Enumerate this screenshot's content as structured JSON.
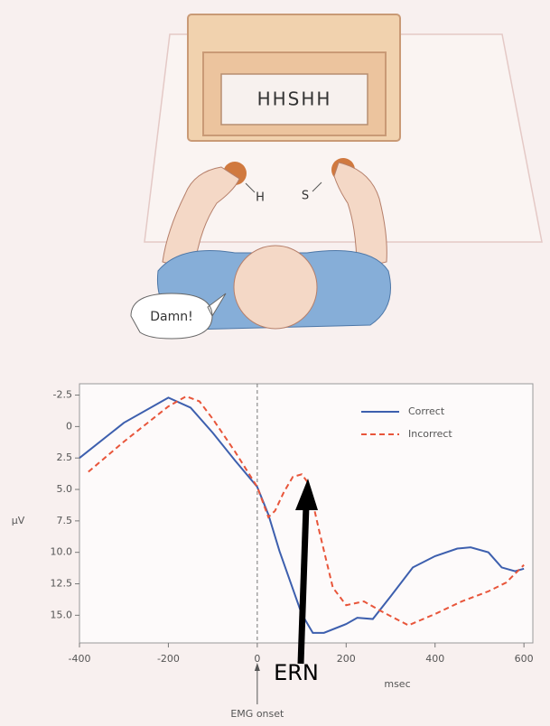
{
  "illustration": {
    "screen_text": "HHSHH",
    "left_key": "H",
    "right_key": "S",
    "speech": "Damn!"
  },
  "chart_data": {
    "type": "line",
    "x_label": "msec",
    "y_label": "μV",
    "xlim": [
      -400,
      620
    ],
    "xticks": [
      -400,
      -200,
      0,
      200,
      400,
      600
    ],
    "ylim": [
      -3.4,
      17.2
    ],
    "y_inverted": true,
    "yticks": [
      -2.5,
      0,
      2.5,
      {
        "value": 5,
        "label": "5.0"
      },
      7.5,
      {
        "value": 10,
        "label": "10.0"
      },
      12.5,
      {
        "value": 15,
        "label": "15.0"
      }
    ],
    "legend": "upper right",
    "event": {
      "label": "EMG onset",
      "x": 0
    },
    "annotation": "ERN",
    "series": [
      {
        "name": "Correct",
        "color": "#3d5fae",
        "dash": false,
        "x": [
          -400,
          -300,
          -200,
          -150,
          -100,
          -50,
          0,
          25,
          50,
          100,
          125,
          150,
          200,
          225,
          260,
          300,
          350,
          400,
          450,
          480,
          520,
          550,
          580,
          600
        ],
        "values": [
          2.5,
          -0.3,
          -2.3,
          -1.5,
          0.5,
          2.7,
          4.8,
          7,
          9.9,
          14.9,
          16.4,
          16.4,
          15.7,
          15.2,
          15.3,
          13.5,
          11.2,
          10.3,
          9.7,
          9.6,
          10,
          11.2,
          11.5,
          11.3
        ]
      },
      {
        "name": "Incorrect",
        "color": "#e8553a",
        "dash": true,
        "x": [
          -380,
          -300,
          -200,
          -160,
          -130,
          -100,
          -50,
          0,
          25,
          40,
          60,
          80,
          100,
          115,
          140,
          170,
          200,
          240,
          280,
          340,
          400,
          460,
          520,
          560,
          600
        ],
        "values": [
          3.6,
          1.2,
          -1.6,
          -2.4,
          -2,
          -0.6,
          2,
          4.8,
          7.2,
          6.7,
          5.2,
          4,
          3.8,
          4.5,
          8.4,
          12.8,
          14.2,
          13.9,
          14.7,
          15.8,
          14.9,
          13.9,
          13.1,
          12.4,
          11
        ]
      }
    ]
  }
}
